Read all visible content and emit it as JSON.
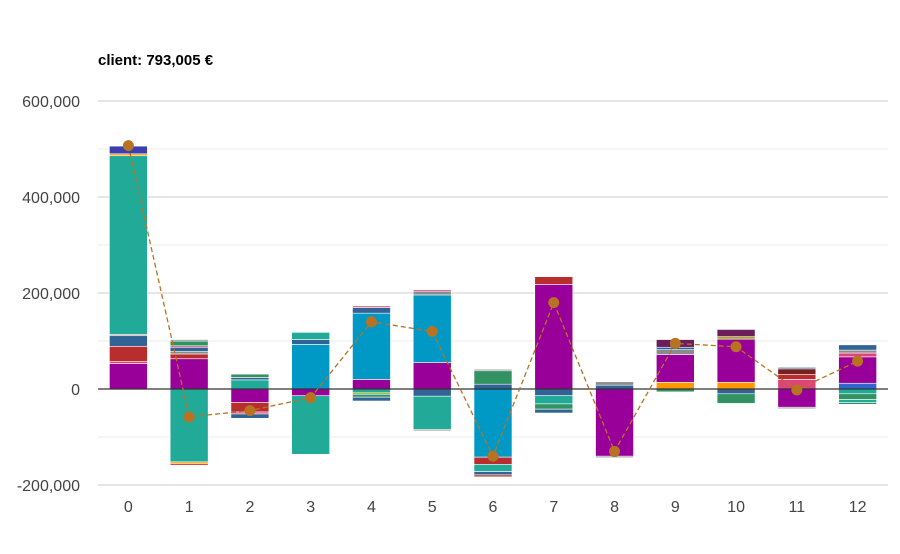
{
  "chart_data": {
    "type": "bar",
    "subtype": "stacked-bar-with-line",
    "title": "client: 793,005 €",
    "xlabel": "",
    "ylabel": "",
    "categories": [
      "0",
      "1",
      "2",
      "3",
      "4",
      "5",
      "6",
      "7",
      "8",
      "9",
      "10",
      "11",
      "12"
    ],
    "ylim": [
      -200000,
      600000
    ],
    "yticks": [
      -200000,
      0,
      200000,
      400000,
      600000
    ],
    "ytick_labels": [
      "-200,000",
      "0",
      "200,000",
      "400,000",
      "600,000"
    ],
    "grid": true,
    "legend": "none",
    "colors": {
      "purple": "#990099",
      "red": "#b82e2e",
      "steel": "#316395",
      "teal": "#22aa99",
      "blue": "#3366cc",
      "cyan": "#0099c6",
      "green": "#329262",
      "orange": "#ff9900",
      "maroon": "#6b1d5c",
      "darkred": "#7a1f1f",
      "pink": "#dd4477",
      "olive": "#aaaa11",
      "gray": "#8b8b8b",
      "indigo": "#3b3eac",
      "line": "#b77322"
    },
    "bars": [
      {
        "category": "0",
        "segments": [
          {
            "color": "purple",
            "value": 53000
          },
          {
            "color": "pink",
            "value": 4000
          },
          {
            "color": "red",
            "value": 32000
          },
          {
            "color": "steel",
            "value": 22000
          },
          {
            "color": "gray",
            "value": 3000
          },
          {
            "color": "teal",
            "value": 372000
          },
          {
            "color": "orange",
            "value": 4000
          },
          {
            "color": "indigo",
            "value": 16000
          }
        ]
      },
      {
        "category": "1",
        "segments": [
          {
            "color": "purple",
            "value": 63000
          },
          {
            "color": "red",
            "value": 10000
          },
          {
            "color": "gray",
            "value": 5000
          },
          {
            "color": "steel",
            "value": 9000
          },
          {
            "color": "pink",
            "value": 3000
          },
          {
            "color": "green",
            "value": 10000
          },
          {
            "color": "gray",
            "value": 3000
          },
          {
            "color": "teal",
            "value": -152000
          },
          {
            "color": "orange",
            "value": -4000
          },
          {
            "color": "red",
            "value": -3000
          }
        ]
      },
      {
        "category": "2",
        "segments": [
          {
            "color": "teal",
            "value": 19000
          },
          {
            "color": "steel",
            "value": 5000
          },
          {
            "color": "green",
            "value": 7000
          },
          {
            "color": "purple",
            "value": -28000
          },
          {
            "color": "red",
            "value": -20000
          },
          {
            "color": "pink",
            "value": -4000
          },
          {
            "color": "steel",
            "value": -9000
          }
        ]
      },
      {
        "category": "3",
        "segments": [
          {
            "color": "cyan",
            "value": 93000
          },
          {
            "color": "steel",
            "value": 10000
          },
          {
            "color": "teal",
            "value": 15000
          },
          {
            "color": "purple",
            "value": -14000
          },
          {
            "color": "teal",
            "value": -122000
          }
        ]
      },
      {
        "category": "4",
        "segments": [
          {
            "color": "purple",
            "value": 20000
          },
          {
            "color": "cyan",
            "value": 138000
          },
          {
            "color": "steel",
            "value": 12000
          },
          {
            "color": "pink",
            "value": 3000
          },
          {
            "color": "teal",
            "value": -8000
          },
          {
            "color": "olive",
            "value": -3000
          },
          {
            "color": "green",
            "value": -6000
          },
          {
            "color": "steel",
            "value": -8000
          }
        ]
      },
      {
        "category": "5",
        "segments": [
          {
            "color": "purple",
            "value": 55000
          },
          {
            "color": "cyan",
            "value": 141000
          },
          {
            "color": "gray",
            "value": 8000
          },
          {
            "color": "pink",
            "value": 3000
          },
          {
            "color": "steel",
            "value": -15000
          },
          {
            "color": "teal",
            "value": -69000
          },
          {
            "color": "gray",
            "value": -3000
          }
        ]
      },
      {
        "category": "6",
        "segments": [
          {
            "color": "steel",
            "value": 10000
          },
          {
            "color": "green",
            "value": 28000
          },
          {
            "color": "gray",
            "value": 3000
          },
          {
            "color": "cyan",
            "value": -142000
          },
          {
            "color": "red",
            "value": -15000
          },
          {
            "color": "teal",
            "value": -15000
          },
          {
            "color": "steel",
            "value": -7000
          },
          {
            "color": "red",
            "value": -4000
          }
        ]
      },
      {
        "category": "7",
        "segments": [
          {
            "color": "purple",
            "value": 218000
          },
          {
            "color": "red",
            "value": 16000
          },
          {
            "color": "steel",
            "value": -14000
          },
          {
            "color": "teal",
            "value": -17000
          },
          {
            "color": "green",
            "value": -11000
          },
          {
            "color": "steel",
            "value": -8000
          }
        ]
      },
      {
        "category": "8",
        "segments": [
          {
            "color": "steel",
            "value": 8000
          },
          {
            "color": "gray",
            "value": 7000
          },
          {
            "color": "purple",
            "value": -140000
          },
          {
            "color": "gray",
            "value": -3000
          }
        ]
      },
      {
        "category": "9",
        "segments": [
          {
            "color": "orange",
            "value": 14000
          },
          {
            "color": "purple",
            "value": 58000
          },
          {
            "color": "gray",
            "value": 10000
          },
          {
            "color": "steel",
            "value": 5000
          },
          {
            "color": "maroon",
            "value": 16000
          },
          {
            "color": "green",
            "value": -6000
          }
        ]
      },
      {
        "category": "10",
        "segments": [
          {
            "color": "orange",
            "value": 14000
          },
          {
            "color": "purple",
            "value": 90000
          },
          {
            "color": "olive",
            "value": 5000
          },
          {
            "color": "maroon",
            "value": 15000
          },
          {
            "color": "steel",
            "value": -10000
          },
          {
            "color": "green",
            "value": -20000
          }
        ]
      },
      {
        "category": "11",
        "segments": [
          {
            "color": "pink",
            "value": 20000
          },
          {
            "color": "red",
            "value": 10000
          },
          {
            "color": "darkred",
            "value": 12000
          },
          {
            "color": "steel",
            "value": 3000
          },
          {
            "color": "purple",
            "value": -38000
          },
          {
            "color": "gray",
            "value": -3000
          }
        ]
      },
      {
        "category": "12",
        "segments": [
          {
            "color": "blue",
            "value": 12000
          },
          {
            "color": "purple",
            "value": 55000
          },
          {
            "color": "pink",
            "value": 8000
          },
          {
            "color": "gray",
            "value": 6000
          },
          {
            "color": "steel",
            "value": 11000
          },
          {
            "color": "teal",
            "value": -10000
          },
          {
            "color": "green",
            "value": -12000
          },
          {
            "color": "teal",
            "value": -6000
          },
          {
            "color": "green",
            "value": -4000
          }
        ]
      }
    ],
    "line": {
      "values": [
        507000,
        -58000,
        -45000,
        -18000,
        140000,
        120000,
        -140000,
        180000,
        -130000,
        95000,
        88000,
        -2000,
        58000
      ],
      "style": "dashed",
      "markers": "circle"
    }
  }
}
